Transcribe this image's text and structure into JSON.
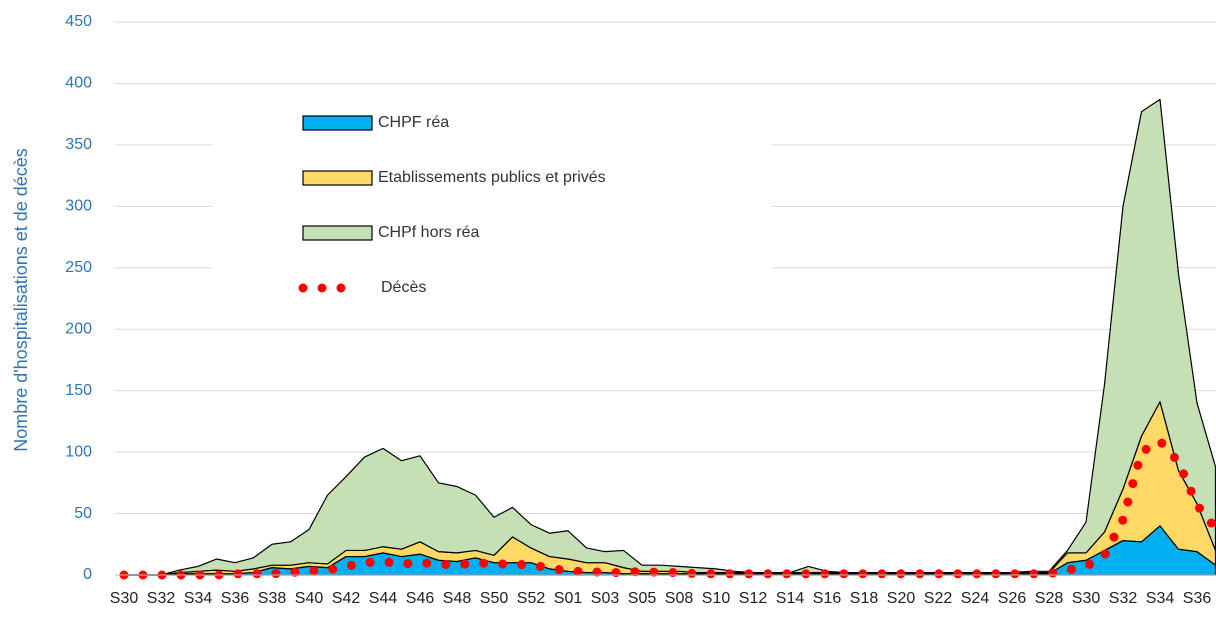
{
  "chart_data": {
    "type": "area",
    "y_label": "Nombre d'hospitalisations et de décès",
    "categories": [
      "S30",
      null,
      "S32",
      null,
      "S34",
      null,
      "S36",
      null,
      "S38",
      null,
      "S40",
      null,
      "S42",
      null,
      "S44",
      null,
      "S46",
      null,
      "S48",
      null,
      "S50",
      null,
      "S52",
      null,
      "S01",
      null,
      "S03",
      null,
      "S05",
      null,
      "S08",
      null,
      "S10",
      null,
      "S12",
      null,
      "S14",
      null,
      "S16",
      null,
      "S18",
      null,
      "S20",
      null,
      "S22",
      null,
      "S24",
      null,
      "S26",
      null,
      "S28",
      null,
      "S30",
      null,
      "S32",
      null,
      "S34",
      null,
      "S36",
      null
    ],
    "series": [
      {
        "name": "CHPF réa",
        "color": "#00b0f0",
        "kind": "area",
        "values": [
          0,
          0,
          0,
          1,
          1,
          1,
          1,
          2,
          6,
          5,
          7,
          6,
          15,
          15,
          18,
          15,
          17,
          12,
          11,
          14,
          10,
          10,
          10,
          5,
          3,
          2,
          2,
          1,
          1,
          1,
          1,
          1,
          1,
          1,
          1,
          1,
          1,
          1,
          1,
          1,
          1,
          1,
          1,
          1,
          1,
          1,
          1,
          1,
          1,
          1,
          1,
          10,
          12,
          20,
          28,
          27,
          40,
          21,
          19,
          8
        ]
      },
      {
        "name": "Etablissements publics et privés",
        "color": "#ffd966",
        "kind": "area",
        "values": [
          0,
          0,
          0,
          1,
          2,
          3,
          2,
          3,
          2,
          3,
          3,
          3,
          5,
          5,
          5,
          6,
          10,
          7,
          7,
          6,
          6,
          21,
          12,
          10,
          10,
          8,
          8,
          5,
          2,
          2,
          2,
          1,
          1,
          1,
          1,
          1,
          1,
          1,
          1,
          1,
          1,
          1,
          1,
          1,
          1,
          1,
          1,
          1,
          1,
          1,
          1,
          8,
          6,
          15,
          42,
          86,
          101,
          64,
          39,
          12
        ]
      },
      {
        "name": "CHPf hors réa",
        "color": "#c5e0b4",
        "kind": "area",
        "values": [
          0,
          0,
          0,
          2,
          4,
          9,
          7,
          9,
          17,
          19,
          27,
          56,
          60,
          76,
          80,
          72,
          70,
          56,
          54,
          45,
          31,
          24,
          19,
          19,
          23,
          12,
          9,
          14,
          5,
          5,
          4,
          4,
          3,
          1,
          0,
          0,
          0,
          5,
          1,
          0,
          0,
          0,
          0,
          0,
          0,
          0,
          0,
          0,
          0,
          1,
          1,
          2,
          25,
          120,
          230,
          264,
          246,
          160,
          82,
          68
        ]
      },
      {
        "name": "Décès",
        "color": "#ff0000",
        "kind": "line",
        "values": [
          0,
          0,
          0,
          0,
          0,
          0,
          1,
          1,
          1,
          2,
          3,
          4,
          7,
          10,
          11,
          9,
          10,
          9,
          8,
          10,
          9,
          9,
          8,
          6,
          3,
          3,
          2,
          2,
          3,
          2,
          2,
          1,
          1,
          1,
          1,
          1,
          1,
          1,
          1,
          1,
          1,
          1,
          1,
          1,
          1,
          1,
          1,
          1,
          1,
          1,
          1,
          4,
          7,
          16,
          45,
          100,
          109,
          92,
          57,
          38
        ]
      }
    ],
    "ylim": [
      0,
      450
    ],
    "yticks": [
      0,
      50,
      100,
      150,
      200,
      250,
      300,
      350,
      400,
      450
    ],
    "grid": true
  }
}
